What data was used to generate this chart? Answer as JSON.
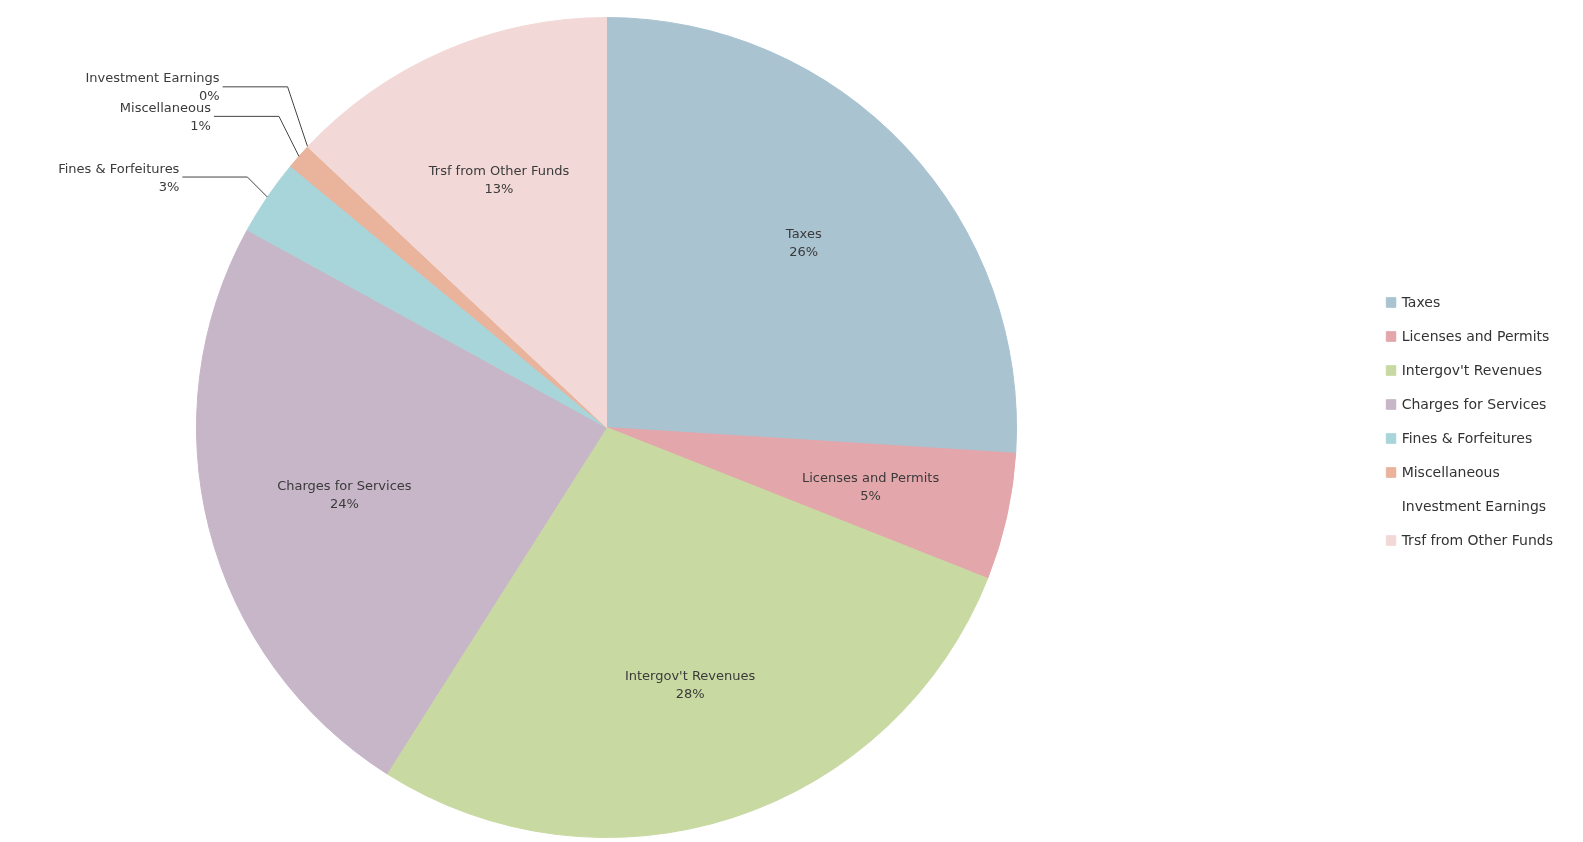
{
  "chart_data": {
    "type": "pie",
    "categories": [
      "Taxes",
      "Licenses and Permits",
      "Intergov't Revenues",
      "Charges for Services",
      "Fines & Forfeitures",
      "Miscellaneous",
      "Investment Earnings",
      "Trsf from Other Funds"
    ],
    "values": [
      26,
      5,
      28,
      24,
      3,
      1,
      0,
      13
    ],
    "colors": [
      "#a9c3d1",
      "#e3a6ab",
      "#c9d9a2",
      "#c7b5c8",
      "#a8d5d9",
      "#e9b39c",
      "#d9dbe8",
      "#f2d9d7"
    ],
    "value_labels": [
      "26%",
      "5%",
      "28%",
      "24%",
      "3%",
      "1%",
      "0%",
      "13%"
    ],
    "legend": "right"
  }
}
